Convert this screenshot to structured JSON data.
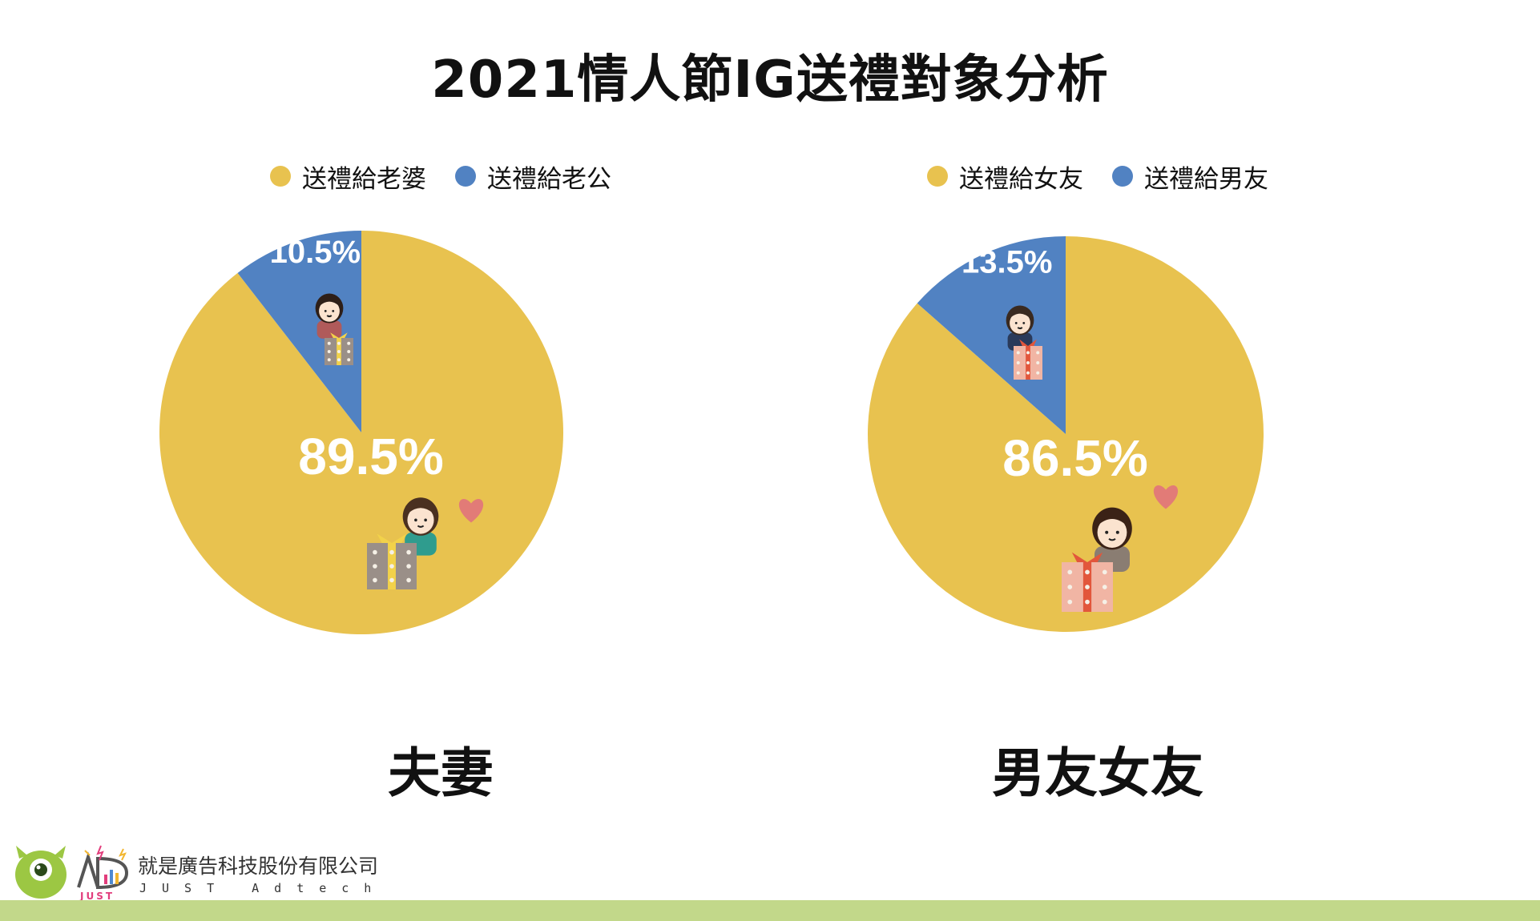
{
  "title": "2021情人節IG送禮對象分析",
  "colors": {
    "major": "#e8c24f",
    "minor": "#5182c2",
    "footer": "#c2d88a",
    "heart": "#e27b77"
  },
  "chart_data": [
    {
      "type": "pie",
      "label": "夫妻",
      "legend": [
        "送禮給老婆",
        "送禮給老公"
      ],
      "slices": [
        {
          "name": "送禮給老婆",
          "value": 89.5,
          "value_label": "89.5%",
          "color": "#e8c24f"
        },
        {
          "name": "送禮給老公",
          "value": 10.5,
          "value_label": "10.5%",
          "color": "#5182c2"
        }
      ]
    },
    {
      "type": "pie",
      "label": "男友女友",
      "legend": [
        "送禮給女友",
        "送禮給男友"
      ],
      "slices": [
        {
          "name": "送禮給女友",
          "value": 86.5,
          "value_label": "86.5%",
          "color": "#e8c24f"
        },
        {
          "name": "送禮給男友",
          "value": 13.5,
          "value_label": "13.5%",
          "color": "#5182c2"
        }
      ]
    }
  ],
  "footer": {
    "company_name": "就是廣告科技股份有限公司",
    "company_sub": "JUST Adtech",
    "logo_letters": "JUST"
  }
}
